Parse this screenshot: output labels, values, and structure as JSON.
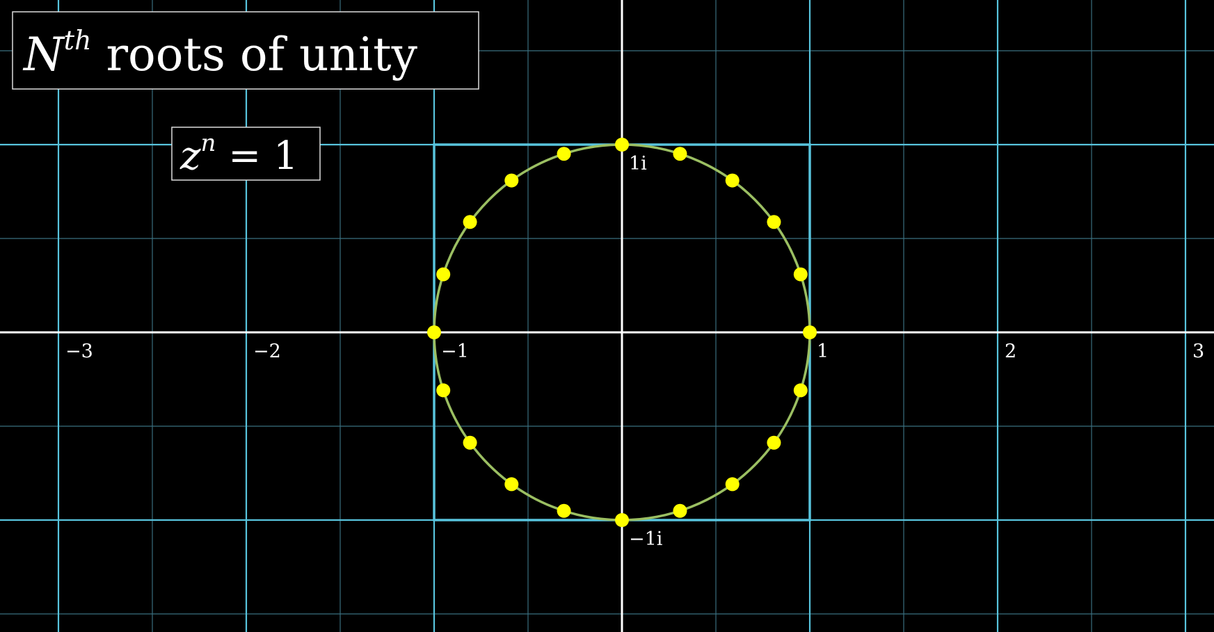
{
  "title": {
    "base": "N",
    "superscript": "th",
    "rest": " roots of unity"
  },
  "equation": {
    "base": "z",
    "exponent": "n",
    "rest": " = 1"
  },
  "axis": {
    "x_tick_labels": [
      {
        "value": -3,
        "label": "−3"
      },
      {
        "value": -2,
        "label": "−2"
      },
      {
        "value": -1,
        "label": "−1"
      },
      {
        "value": 1,
        "label": "1"
      },
      {
        "value": 2,
        "label": "2"
      },
      {
        "value": 3,
        "label": "3"
      }
    ],
    "y_tick_labels": [
      {
        "value": 1,
        "label": "1i"
      },
      {
        "value": -1,
        "label": "−1i"
      }
    ],
    "x_range": [
      -3.3,
      3.3
    ],
    "y_range": [
      -1.8,
      1.8
    ]
  },
  "roots": {
    "n": 20,
    "color": "#ffff00"
  },
  "colors": {
    "background": "#000000",
    "major_grid": "#58c4dd",
    "minor_grid": "#3a6f7f",
    "axes": "#ffffff",
    "unit_circle": "#9bbf62",
    "label_box_border": "#dddddd"
  }
}
